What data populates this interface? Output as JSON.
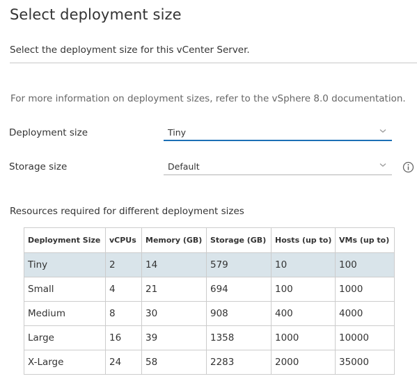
{
  "page": {
    "title": "Select deployment size",
    "subtitle": "Select the deployment size for this vCenter Server.",
    "info_text": "For more information on deployment sizes, refer to the vSphere 8.0 documentation."
  },
  "form": {
    "deployment_size": {
      "label": "Deployment size",
      "value": "Tiny"
    },
    "storage_size": {
      "label": "Storage size",
      "value": "Default"
    }
  },
  "resources": {
    "title": "Resources required for different deployment sizes",
    "headers": [
      "Deployment Size",
      "vCPUs",
      "Memory (GB)",
      "Storage (GB)",
      "Hosts (up to)",
      "VMs (up to)"
    ],
    "rows": [
      [
        "Tiny",
        "2",
        "14",
        "579",
        "10",
        "100"
      ],
      [
        "Small",
        "4",
        "21",
        "694",
        "100",
        "1000"
      ],
      [
        "Medium",
        "8",
        "30",
        "908",
        "400",
        "4000"
      ],
      [
        "Large",
        "16",
        "39",
        "1358",
        "1000",
        "10000"
      ],
      [
        "X-Large",
        "24",
        "58",
        "2283",
        "2000",
        "35000"
      ]
    ],
    "selected_row": 0
  },
  "colors": {
    "accent": "#1b6fb5",
    "selected_row": "#d9e4ea",
    "text": "#333333",
    "muted_text": "#666666"
  },
  "icons": {
    "dropdown": "chevron-down-icon",
    "info": "info-circle-icon"
  }
}
